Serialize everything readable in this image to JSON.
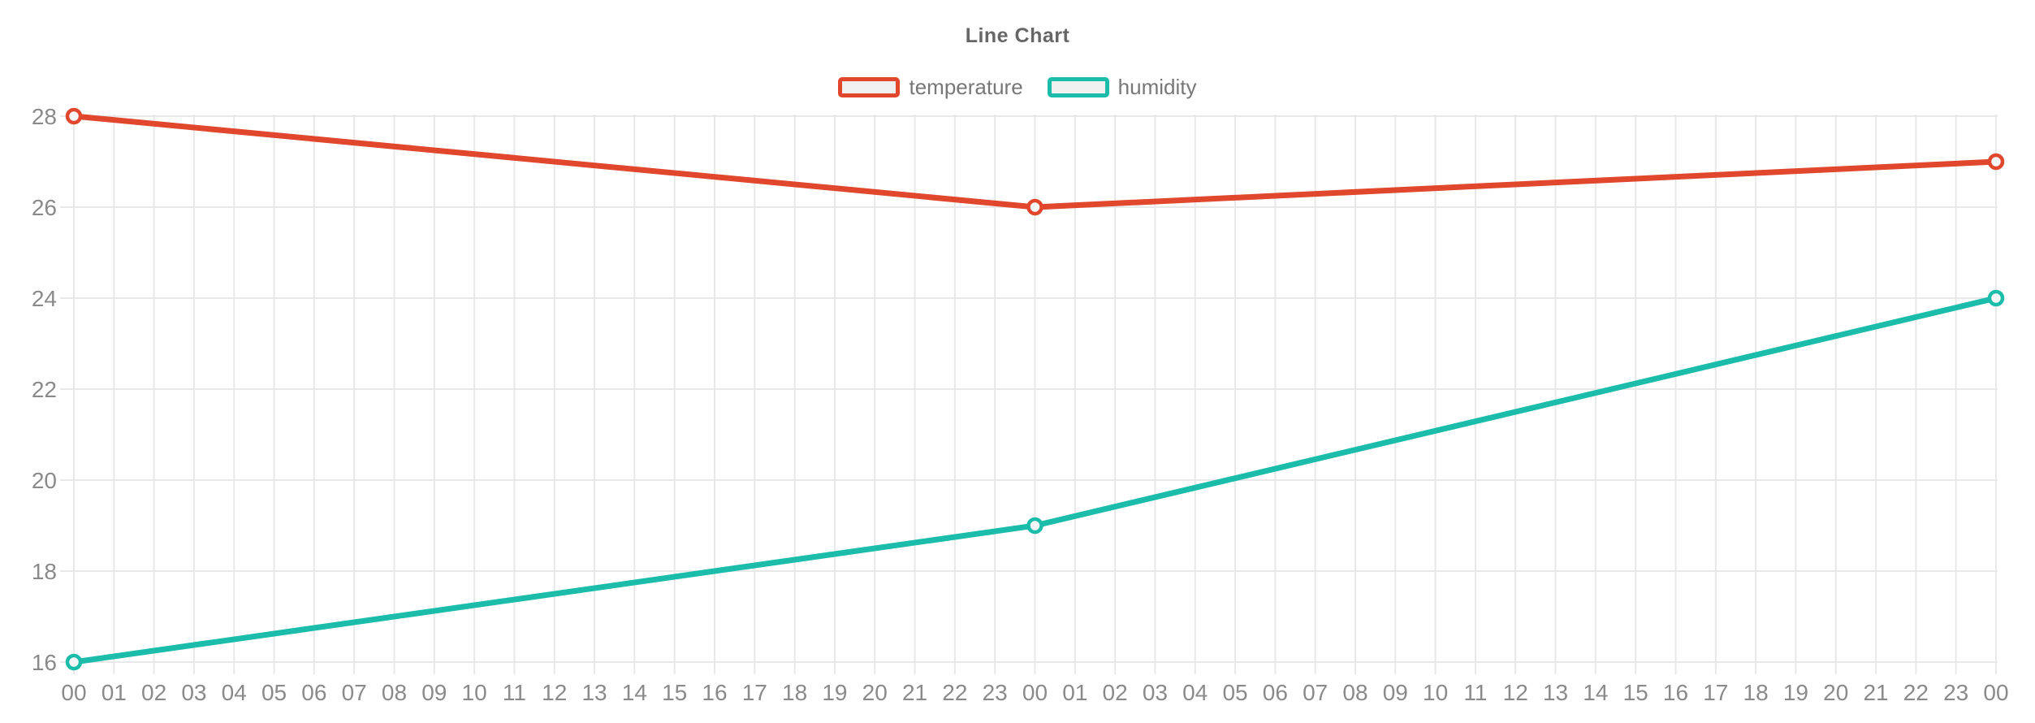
{
  "chart_data": {
    "type": "line",
    "title": "Line Chart",
    "xlabel": "",
    "ylabel": "",
    "x_labels": [
      "00",
      "01",
      "02",
      "03",
      "04",
      "05",
      "06",
      "07",
      "08",
      "09",
      "10",
      "11",
      "12",
      "13",
      "14",
      "15",
      "16",
      "17",
      "18",
      "19",
      "20",
      "21",
      "22",
      "23",
      "00",
      "01",
      "02",
      "03",
      "04",
      "05",
      "06",
      "07",
      "08",
      "09",
      "10",
      "11",
      "12",
      "13",
      "14",
      "15",
      "16",
      "17",
      "18",
      "19",
      "20",
      "21",
      "22",
      "23",
      "00"
    ],
    "y_ticks": [
      16,
      18,
      20,
      22,
      24,
      26,
      28
    ],
    "ylim": [
      16,
      28
    ],
    "grid": true,
    "legend": {
      "position": "top-center",
      "items": [
        "temperature",
        "humidity"
      ]
    },
    "series": [
      {
        "name": "temperature",
        "color": "#e0472d",
        "marker": "open-circle",
        "points": [
          {
            "x_index": 0,
            "x_label": "00",
            "value": 28
          },
          {
            "x_index": 24,
            "x_label": "00",
            "value": 26
          },
          {
            "x_index": 48,
            "x_label": "00",
            "value": 27
          }
        ]
      },
      {
        "name": "humidity",
        "color": "#1bbca9",
        "marker": "open-circle",
        "points": [
          {
            "x_index": 0,
            "x_label": "00",
            "value": 16
          },
          {
            "x_index": 24,
            "x_label": "00",
            "value": 19
          },
          {
            "x_index": 48,
            "x_label": "00",
            "value": 24
          }
        ]
      }
    ],
    "styles": {
      "grid_color": "#e8e8e8",
      "axis_label_color": "#8a8a8a",
      "title_color": "#666666",
      "legend_text_color": "#777777",
      "legend_swatch_fill": "#f0f0f0",
      "marker_fill": "#f7f7f7",
      "background": "#ffffff"
    }
  }
}
